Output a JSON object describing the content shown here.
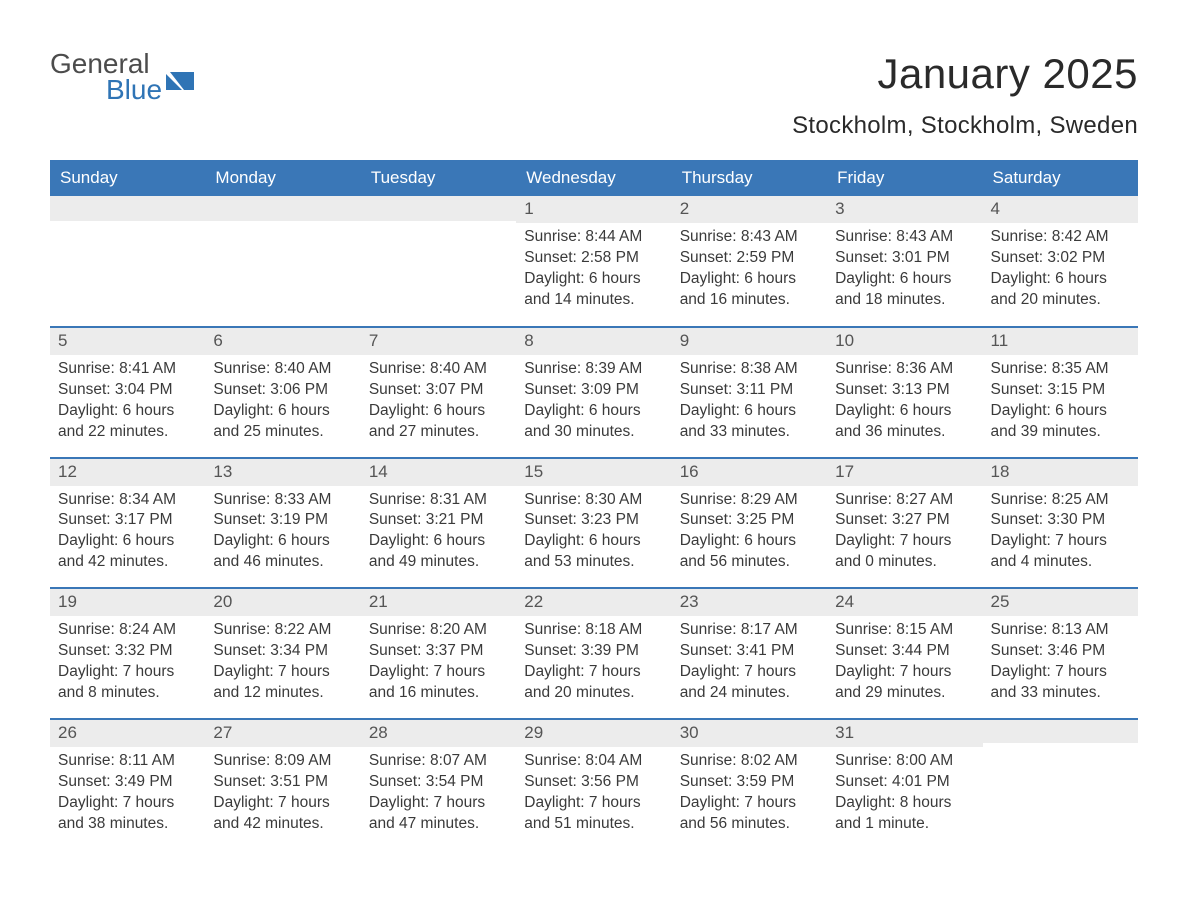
{
  "logo": {
    "general": "General",
    "blue": "Blue",
    "icon_color": "#2f74b5"
  },
  "header": {
    "title": "January 2025",
    "location": "Stockholm, Stockholm, Sweden"
  },
  "colors": {
    "header_bg": "#3a77b7",
    "header_text": "#ffffff",
    "daynum_bg": "#ececec",
    "rule": "#3a77b7",
    "body_text": "#3a3a3a",
    "page_bg": "#ffffff"
  },
  "typography": {
    "title_fontsize": 42,
    "location_fontsize": 24,
    "dayheader_fontsize": 17,
    "cell_fontsize": 15.5
  },
  "calendar": {
    "columns": [
      "Sunday",
      "Monday",
      "Tuesday",
      "Wednesday",
      "Thursday",
      "Friday",
      "Saturday"
    ],
    "weeks": [
      [
        {
          "day": "",
          "lines": []
        },
        {
          "day": "",
          "lines": []
        },
        {
          "day": "",
          "lines": []
        },
        {
          "day": "1",
          "lines": [
            "Sunrise: 8:44 AM",
            "Sunset: 2:58 PM",
            "Daylight: 6 hours",
            "and 14 minutes."
          ]
        },
        {
          "day": "2",
          "lines": [
            "Sunrise: 8:43 AM",
            "Sunset: 2:59 PM",
            "Daylight: 6 hours",
            "and 16 minutes."
          ]
        },
        {
          "day": "3",
          "lines": [
            "Sunrise: 8:43 AM",
            "Sunset: 3:01 PM",
            "Daylight: 6 hours",
            "and 18 minutes."
          ]
        },
        {
          "day": "4",
          "lines": [
            "Sunrise: 8:42 AM",
            "Sunset: 3:02 PM",
            "Daylight: 6 hours",
            "and 20 minutes."
          ]
        }
      ],
      [
        {
          "day": "5",
          "lines": [
            "Sunrise: 8:41 AM",
            "Sunset: 3:04 PM",
            "Daylight: 6 hours",
            "and 22 minutes."
          ]
        },
        {
          "day": "6",
          "lines": [
            "Sunrise: 8:40 AM",
            "Sunset: 3:06 PM",
            "Daylight: 6 hours",
            "and 25 minutes."
          ]
        },
        {
          "day": "7",
          "lines": [
            "Sunrise: 8:40 AM",
            "Sunset: 3:07 PM",
            "Daylight: 6 hours",
            "and 27 minutes."
          ]
        },
        {
          "day": "8",
          "lines": [
            "Sunrise: 8:39 AM",
            "Sunset: 3:09 PM",
            "Daylight: 6 hours",
            "and 30 minutes."
          ]
        },
        {
          "day": "9",
          "lines": [
            "Sunrise: 8:38 AM",
            "Sunset: 3:11 PM",
            "Daylight: 6 hours",
            "and 33 minutes."
          ]
        },
        {
          "day": "10",
          "lines": [
            "Sunrise: 8:36 AM",
            "Sunset: 3:13 PM",
            "Daylight: 6 hours",
            "and 36 minutes."
          ]
        },
        {
          "day": "11",
          "lines": [
            "Sunrise: 8:35 AM",
            "Sunset: 3:15 PM",
            "Daylight: 6 hours",
            "and 39 minutes."
          ]
        }
      ],
      [
        {
          "day": "12",
          "lines": [
            "Sunrise: 8:34 AM",
            "Sunset: 3:17 PM",
            "Daylight: 6 hours",
            "and 42 minutes."
          ]
        },
        {
          "day": "13",
          "lines": [
            "Sunrise: 8:33 AM",
            "Sunset: 3:19 PM",
            "Daylight: 6 hours",
            "and 46 minutes."
          ]
        },
        {
          "day": "14",
          "lines": [
            "Sunrise: 8:31 AM",
            "Sunset: 3:21 PM",
            "Daylight: 6 hours",
            "and 49 minutes."
          ]
        },
        {
          "day": "15",
          "lines": [
            "Sunrise: 8:30 AM",
            "Sunset: 3:23 PM",
            "Daylight: 6 hours",
            "and 53 minutes."
          ]
        },
        {
          "day": "16",
          "lines": [
            "Sunrise: 8:29 AM",
            "Sunset: 3:25 PM",
            "Daylight: 6 hours",
            "and 56 minutes."
          ]
        },
        {
          "day": "17",
          "lines": [
            "Sunrise: 8:27 AM",
            "Sunset: 3:27 PM",
            "Daylight: 7 hours",
            "and 0 minutes."
          ]
        },
        {
          "day": "18",
          "lines": [
            "Sunrise: 8:25 AM",
            "Sunset: 3:30 PM",
            "Daylight: 7 hours",
            "and 4 minutes."
          ]
        }
      ],
      [
        {
          "day": "19",
          "lines": [
            "Sunrise: 8:24 AM",
            "Sunset: 3:32 PM",
            "Daylight: 7 hours",
            "and 8 minutes."
          ]
        },
        {
          "day": "20",
          "lines": [
            "Sunrise: 8:22 AM",
            "Sunset: 3:34 PM",
            "Daylight: 7 hours",
            "and 12 minutes."
          ]
        },
        {
          "day": "21",
          "lines": [
            "Sunrise: 8:20 AM",
            "Sunset: 3:37 PM",
            "Daylight: 7 hours",
            "and 16 minutes."
          ]
        },
        {
          "day": "22",
          "lines": [
            "Sunrise: 8:18 AM",
            "Sunset: 3:39 PM",
            "Daylight: 7 hours",
            "and 20 minutes."
          ]
        },
        {
          "day": "23",
          "lines": [
            "Sunrise: 8:17 AM",
            "Sunset: 3:41 PM",
            "Daylight: 7 hours",
            "and 24 minutes."
          ]
        },
        {
          "day": "24",
          "lines": [
            "Sunrise: 8:15 AM",
            "Sunset: 3:44 PM",
            "Daylight: 7 hours",
            "and 29 minutes."
          ]
        },
        {
          "day": "25",
          "lines": [
            "Sunrise: 8:13 AM",
            "Sunset: 3:46 PM",
            "Daylight: 7 hours",
            "and 33 minutes."
          ]
        }
      ],
      [
        {
          "day": "26",
          "lines": [
            "Sunrise: 8:11 AM",
            "Sunset: 3:49 PM",
            "Daylight: 7 hours",
            "and 38 minutes."
          ]
        },
        {
          "day": "27",
          "lines": [
            "Sunrise: 8:09 AM",
            "Sunset: 3:51 PM",
            "Daylight: 7 hours",
            "and 42 minutes."
          ]
        },
        {
          "day": "28",
          "lines": [
            "Sunrise: 8:07 AM",
            "Sunset: 3:54 PM",
            "Daylight: 7 hours",
            "and 47 minutes."
          ]
        },
        {
          "day": "29",
          "lines": [
            "Sunrise: 8:04 AM",
            "Sunset: 3:56 PM",
            "Daylight: 7 hours",
            "and 51 minutes."
          ]
        },
        {
          "day": "30",
          "lines": [
            "Sunrise: 8:02 AM",
            "Sunset: 3:59 PM",
            "Daylight: 7 hours",
            "and 56 minutes."
          ]
        },
        {
          "day": "31",
          "lines": [
            "Sunrise: 8:00 AM",
            "Sunset: 4:01 PM",
            "Daylight: 8 hours",
            "and 1 minute."
          ]
        },
        {
          "day": "",
          "lines": []
        }
      ]
    ]
  }
}
